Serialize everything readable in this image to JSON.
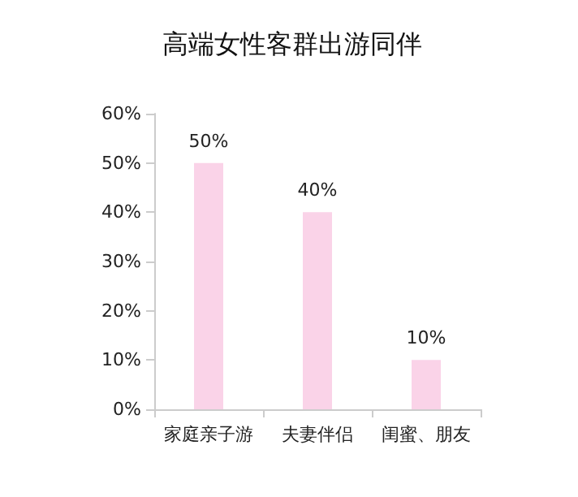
{
  "chart_data": {
    "type": "bar",
    "title": "高端女性客群出游同伴",
    "categories": [
      "家庭亲子游",
      "夫妻伴侣",
      "闺蜜、朋友"
    ],
    "values": [
      50,
      40,
      10
    ],
    "color": "#fad3e8",
    "value_labels": [
      "50%",
      "40%",
      "10%"
    ],
    "ylim": [
      0,
      60
    ],
    "yticks": [
      {
        "value": 0,
        "label": "0%"
      },
      {
        "value": 10,
        "label": "10%"
      },
      {
        "value": 20,
        "label": "20%"
      },
      {
        "value": 30,
        "label": "30%"
      },
      {
        "value": 40,
        "label": "40%"
      },
      {
        "value": 50,
        "label": "50%"
      },
      {
        "value": 60,
        "label": "60%"
      }
    ],
    "grid": false
  }
}
